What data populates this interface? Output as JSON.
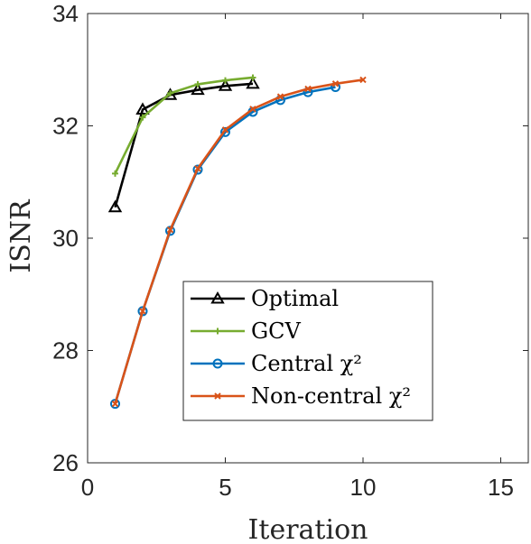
{
  "chart_data": {
    "type": "line",
    "xlabel": "Iteration",
    "ylabel": "ISNR",
    "xlim": [
      0,
      16
    ],
    "ylim": [
      26,
      34
    ],
    "xticks": [
      0,
      5,
      10,
      15
    ],
    "yticks": [
      26,
      28,
      30,
      32,
      34
    ],
    "grid": false,
    "legend_position": "lower-center",
    "series": [
      {
        "name": "Optimal",
        "color": "#000000",
        "marker": "triangle",
        "x": [
          1,
          2,
          3,
          4,
          5,
          6
        ],
        "y": [
          30.55,
          32.29,
          32.55,
          32.64,
          32.71,
          32.75
        ]
      },
      {
        "name": "GCV",
        "color": "#77AC30",
        "marker": "plus",
        "x": [
          1,
          2,
          3,
          4,
          5,
          6
        ],
        "y": [
          31.15,
          32.15,
          32.58,
          32.74,
          32.81,
          32.86
        ]
      },
      {
        "name": "Central χ²",
        "color": "#0072BD",
        "marker": "circle",
        "x": [
          1,
          2,
          3,
          4,
          5,
          6,
          7,
          8,
          9
        ],
        "y": [
          27.05,
          28.7,
          30.13,
          31.22,
          31.89,
          32.25,
          32.46,
          32.6,
          32.69
        ]
      },
      {
        "name": "Non-central χ²",
        "color": "#D95319",
        "marker": "x",
        "x": [
          1,
          2,
          3,
          4,
          5,
          6,
          7,
          8,
          9,
          10
        ],
        "y": [
          27.05,
          28.7,
          30.15,
          31.24,
          31.93,
          32.3,
          32.52,
          32.66,
          32.75,
          32.82
        ]
      }
    ]
  }
}
